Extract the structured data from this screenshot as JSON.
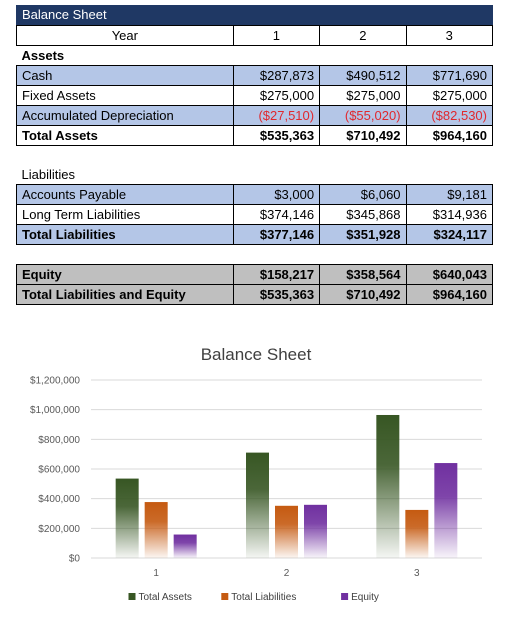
{
  "sheet": {
    "title": "Balance Sheet",
    "header": {
      "label": "Year",
      "years": [
        "1",
        "2",
        "3"
      ]
    },
    "assets": {
      "section": "Assets",
      "rows": [
        {
          "label": "Cash",
          "values": [
            "$287,873",
            "$490,512",
            "$771,690"
          ]
        },
        {
          "label": "Fixed Assets",
          "values": [
            "$275,000",
            "$275,000",
            "$275,000"
          ]
        },
        {
          "label": "Accumulated Depreciation",
          "values": [
            "($27,510)",
            "($55,020)",
            "($82,530)"
          ]
        }
      ],
      "total": {
        "label": "Total Assets",
        "values": [
          "$535,363",
          "$710,492",
          "$964,160"
        ]
      }
    },
    "liabilities": {
      "section": "Liabilities",
      "rows": [
        {
          "label": "Accounts Payable",
          "values": [
            "$3,000",
            "$6,060",
            "$9,181"
          ]
        },
        {
          "label": "Long Term Liabilities",
          "values": [
            "$374,146",
            "$345,868",
            "$314,936"
          ]
        }
      ],
      "total": {
        "label": "Total Liabilities",
        "values": [
          "$377,146",
          "$351,928",
          "$324,117"
        ]
      }
    },
    "equity": {
      "row": {
        "label": "Equity",
        "values": [
          "$158,217",
          "$358,564",
          "$640,043"
        ]
      },
      "total": {
        "label": "Total Liabilities and Equity",
        "values": [
          "$535,363",
          "$710,492",
          "$964,160"
        ]
      }
    },
    "colors": {
      "title_bg": "#1f3864",
      "blue_row": "#b4c6e7",
      "grey_row": "#bfbfbf",
      "negative": "#e0282e"
    }
  },
  "chart_data": {
    "type": "bar",
    "title": "Balance Sheet",
    "categories": [
      "1",
      "2",
      "3"
    ],
    "series": [
      {
        "name": "Total Assets",
        "values": [
          535363,
          710492,
          964160
        ],
        "color": "#375623"
      },
      {
        "name": "Total Liabilities",
        "values": [
          377146,
          351928,
          324117
        ],
        "color": "#c55a11"
      },
      {
        "name": "Equity",
        "values": [
          158217,
          358564,
          640043
        ],
        "color": "#7030a0"
      }
    ],
    "ylim": [
      0,
      1200000
    ],
    "yticks": [
      0,
      200000,
      400000,
      600000,
      800000,
      1000000,
      1200000
    ],
    "ytick_labels": [
      "$0",
      "$200,000",
      "$400,000",
      "$600,000",
      "$800,000",
      "$1,000,000",
      "$1,200,000"
    ],
    "grid": true,
    "legend": "bottom",
    "xlabel": "",
    "ylabel": ""
  }
}
